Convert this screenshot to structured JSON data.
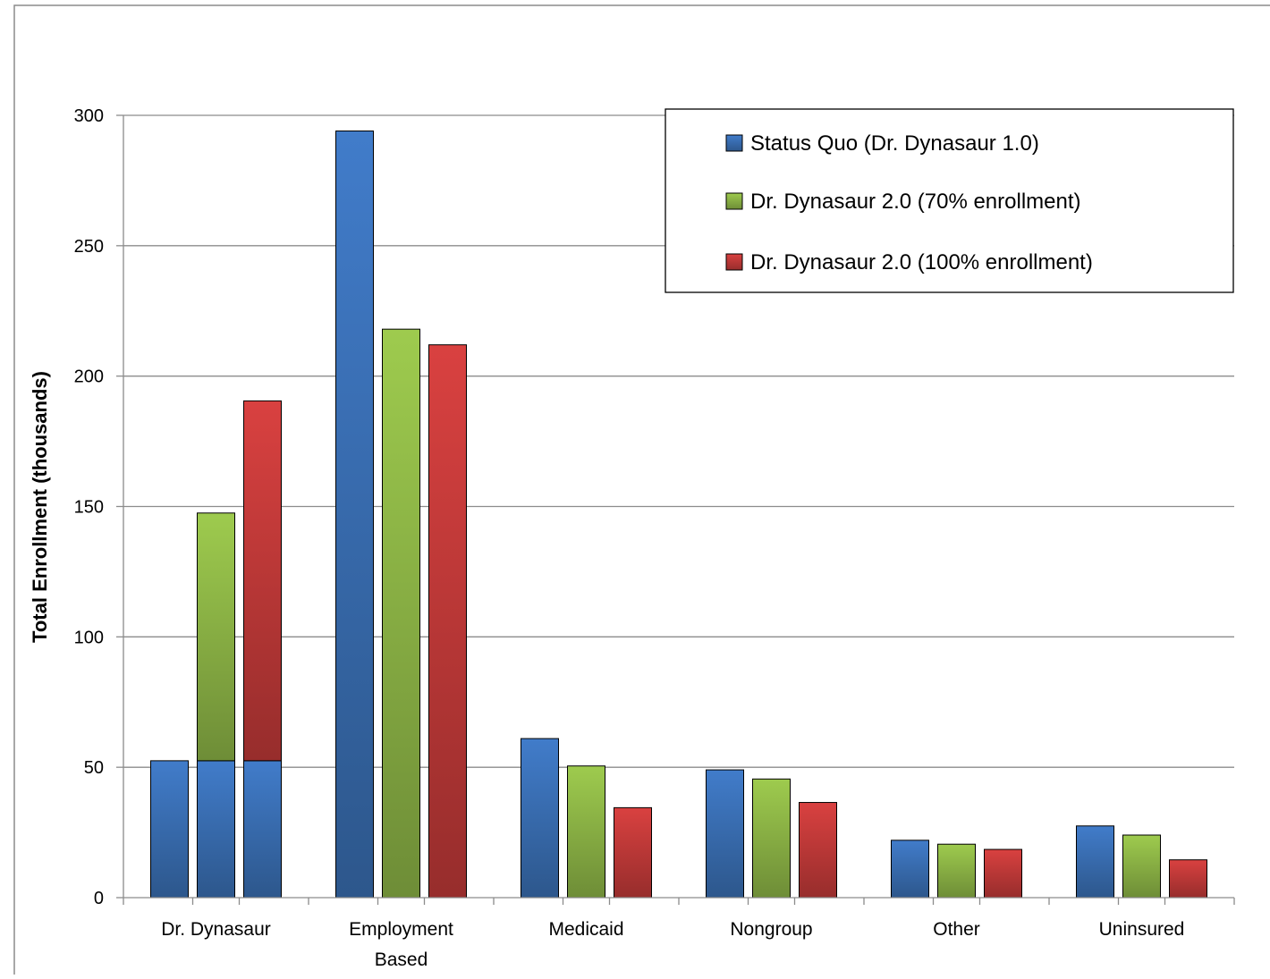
{
  "chart_data": {
    "type": "bar",
    "title": "",
    "xlabel": "",
    "ylabel": "Total Enrollment (thousands)",
    "ylim": [
      0,
      300
    ],
    "yticks": [
      0,
      50,
      100,
      150,
      200,
      250,
      300
    ],
    "grid": true,
    "legend_position": "top-right",
    "categories": [
      {
        "line1": "Dr. Dynasaur",
        "line2": ""
      },
      {
        "line1": "Employment",
        "line2": "Based"
      },
      {
        "line1": "Medicaid",
        "line2": ""
      },
      {
        "line1": "Nongroup",
        "line2": ""
      },
      {
        "line1": "Other",
        "line2": ""
      },
      {
        "line1": "Uninsured",
        "line2": ""
      }
    ],
    "series": [
      {
        "name": "Status Quo (Dr. Dynasaur 1.0)",
        "values": [
          52.5,
          294,
          61,
          49,
          22,
          27.5
        ],
        "color": "#3a6fb4"
      },
      {
        "name": "Dr. Dynasaur 2.0 (70% enrollment)",
        "values": [
          147.5,
          218,
          50.5,
          45.5,
          20.5,
          24
        ],
        "color": "#8db546"
      },
      {
        "name": "Dr. Dynasaur 2.0 (100% enrollment)",
        "values": [
          190.5,
          212,
          34.5,
          36.5,
          18.5,
          14.5
        ],
        "color": "#c23a39"
      }
    ],
    "stacked_baseline": {
      "category_index": 0,
      "series_indices": [
        1,
        2
      ],
      "base_value": 52.5
    }
  }
}
